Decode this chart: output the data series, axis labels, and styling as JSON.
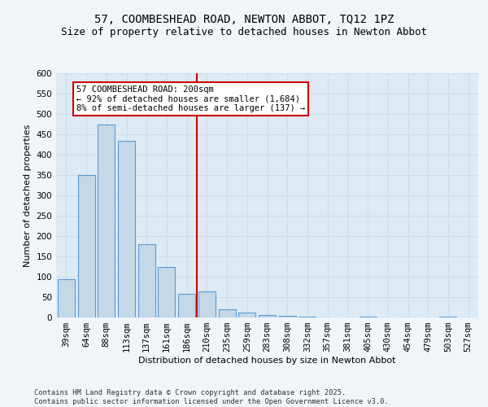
{
  "title1": "57, COOMBESHEAD ROAD, NEWTON ABBOT, TQ12 1PZ",
  "title2": "Size of property relative to detached houses in Newton Abbot",
  "xlabel": "Distribution of detached houses by size in Newton Abbot",
  "ylabel": "Number of detached properties",
  "categories": [
    "39sqm",
    "64sqm",
    "88sqm",
    "113sqm",
    "137sqm",
    "161sqm",
    "186sqm",
    "210sqm",
    "235sqm",
    "259sqm",
    "283sqm",
    "308sqm",
    "332sqm",
    "357sqm",
    "381sqm",
    "405sqm",
    "430sqm",
    "454sqm",
    "479sqm",
    "503sqm",
    "527sqm"
  ],
  "values": [
    95,
    350,
    475,
    435,
    180,
    125,
    58,
    65,
    20,
    12,
    7,
    5,
    2,
    1,
    0,
    3,
    0,
    0,
    0,
    2,
    0
  ],
  "bar_color": "#c5d8e8",
  "bar_edge_color": "#5b9bd5",
  "bar_edge_width": 0.8,
  "grid_color": "#d0dce8",
  "bg_color": "#deeaf4",
  "fig_color": "#f0f5fa",
  "red_line_x": 6.5,
  "annotation_text": "57 COOMBESHEAD ROAD: 200sqm\n← 92% of detached houses are smaller (1,684)\n8% of semi-detached houses are larger (137) →",
  "annotation_box_color": "#ffffff",
  "annotation_border_color": "#cc0000",
  "ylim": [
    0,
    600
  ],
  "yticks": [
    0,
    50,
    100,
    150,
    200,
    250,
    300,
    350,
    400,
    450,
    500,
    550,
    600
  ],
  "footer": "Contains HM Land Registry data © Crown copyright and database right 2025.\nContains public sector information licensed under the Open Government Licence v3.0.",
  "title_fontsize": 10,
  "subtitle_fontsize": 9,
  "axis_label_fontsize": 8,
  "tick_fontsize": 7.5,
  "footer_fontsize": 6.2,
  "annot_fontsize": 7.5
}
